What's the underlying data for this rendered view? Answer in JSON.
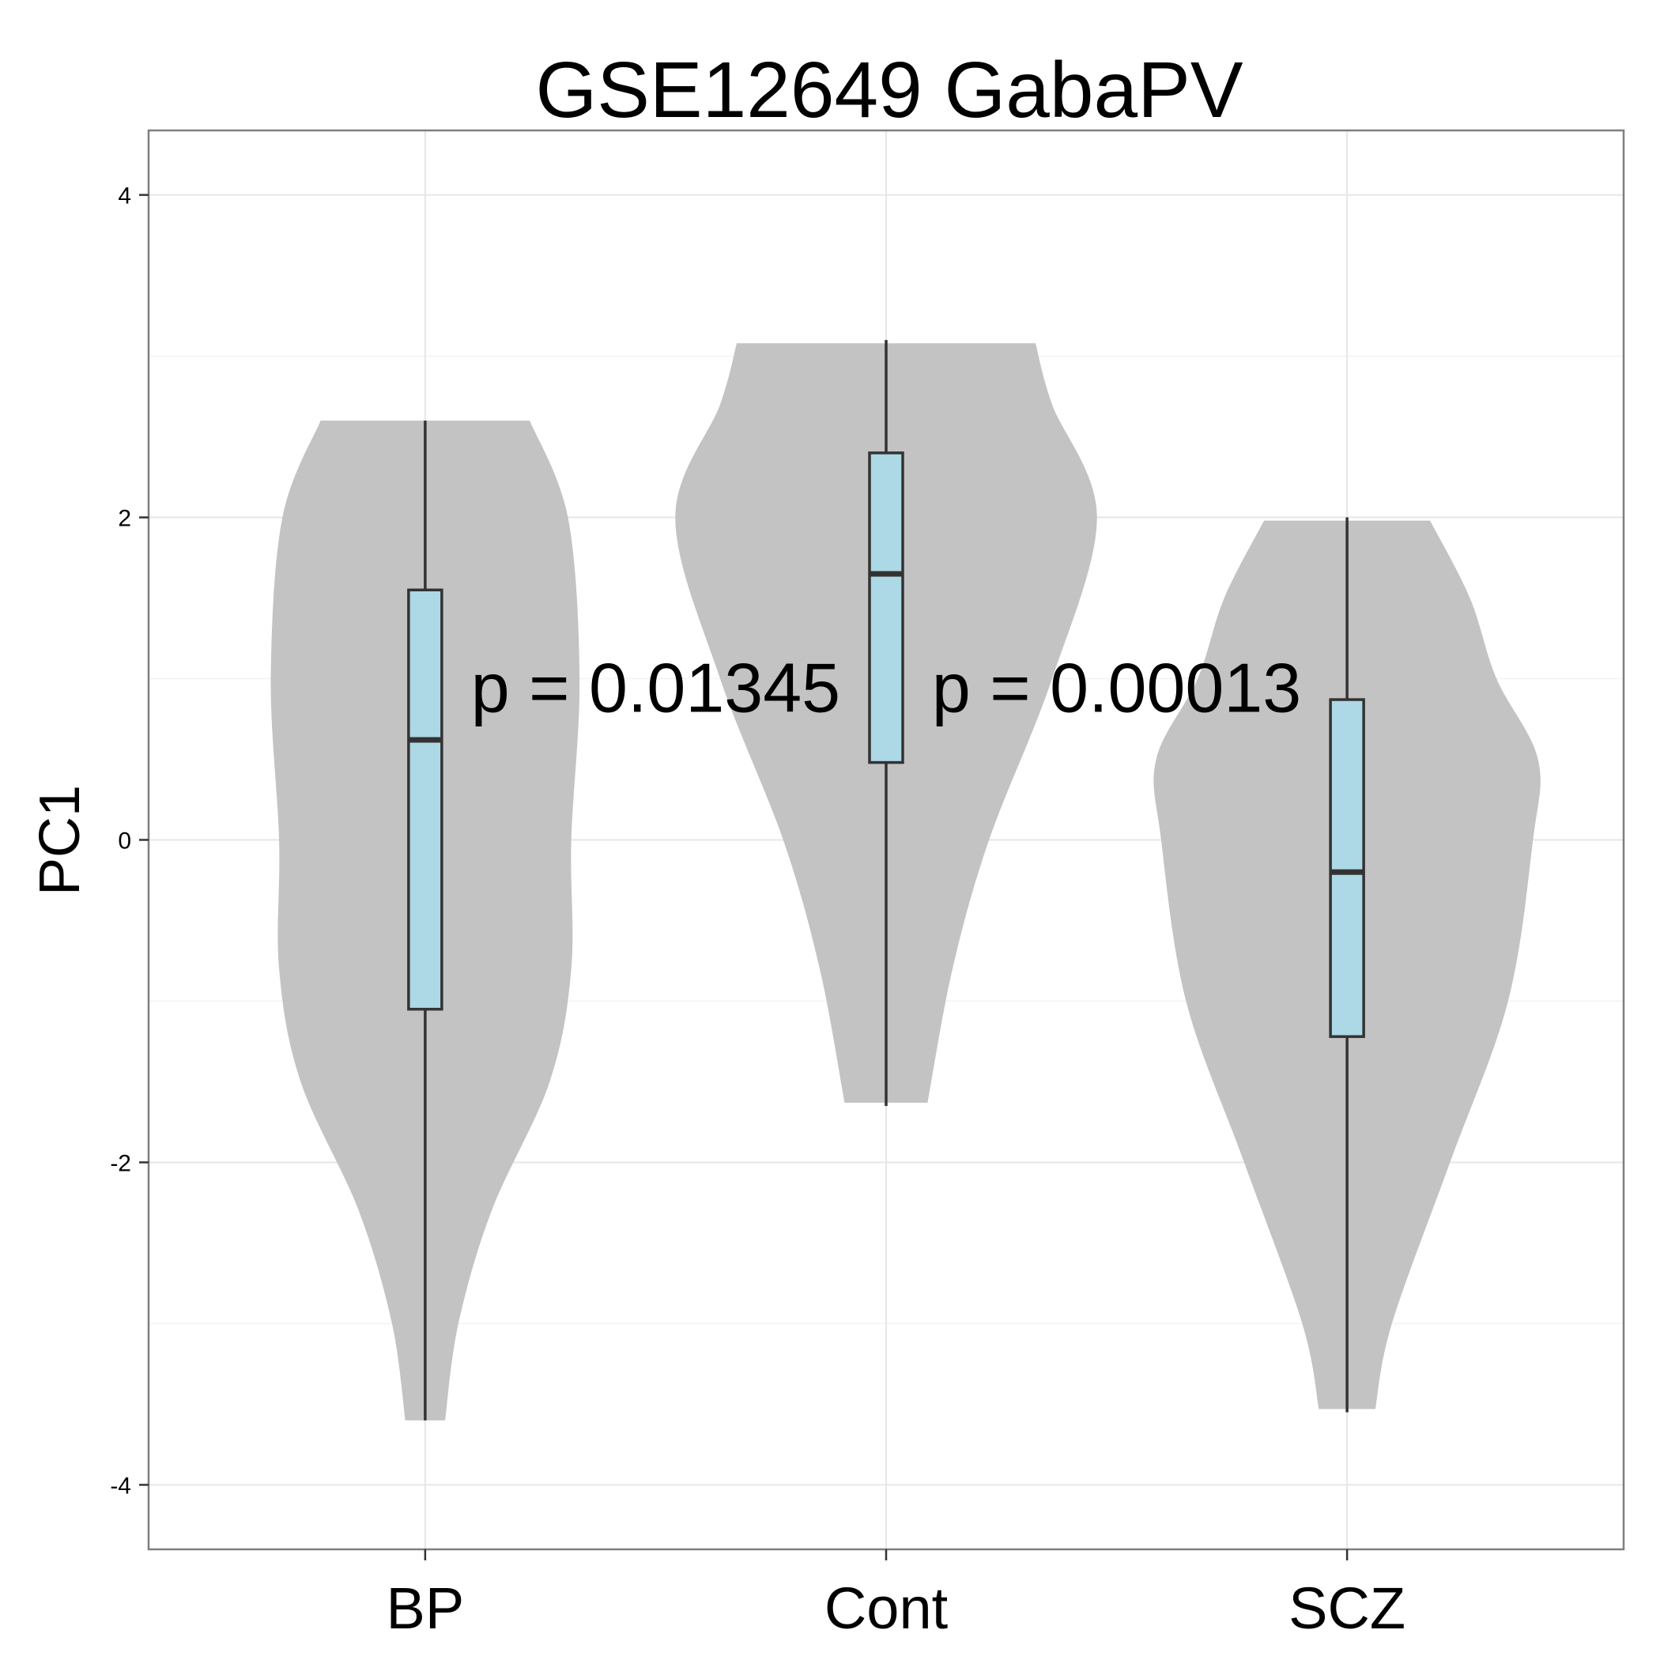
{
  "chart_data": {
    "type": "violin",
    "title": "GSE12649 GabaPV",
    "xlabel": "",
    "ylabel": "PC1",
    "categories": [
      "BP",
      "Cont",
      "SCZ"
    ],
    "ylim": [
      -4.4,
      4.4
    ],
    "y_ticks": [
      -4,
      -2,
      0,
      2,
      4
    ],
    "y_tick_labels": [
      "-4",
      "-2",
      "0",
      "2",
      "4"
    ],
    "grid": true,
    "violin_color": "#c3c3c3",
    "box_color": "#add8e6",
    "groups": [
      {
        "name": "BP",
        "min": -3.6,
        "q1": -1.05,
        "median": 0.62,
        "q3": 1.55,
        "max": 2.6,
        "violin": [
          [
            2.6,
            0.63
          ],
          [
            2.0,
            0.86
          ],
          [
            1.0,
            0.93
          ],
          [
            0.0,
            0.88
          ],
          [
            -0.8,
            0.88
          ],
          [
            -1.5,
            0.75
          ],
          [
            -2.3,
            0.4
          ],
          [
            -3.0,
            0.2
          ],
          [
            -3.6,
            0.12
          ]
        ]
      },
      {
        "name": "Cont",
        "min": -1.65,
        "q1": 0.48,
        "median": 1.65,
        "q3": 2.4,
        "max": 3.1,
        "violin": [
          [
            3.08,
            0.9
          ],
          [
            2.7,
            1.0
          ],
          [
            2.0,
            1.27
          ],
          [
            1.0,
            1.0
          ],
          [
            0.0,
            0.62
          ],
          [
            -0.8,
            0.4
          ],
          [
            -1.63,
            0.25
          ]
        ]
      },
      {
        "name": "SCZ",
        "min": -3.55,
        "q1": -1.22,
        "median": -0.2,
        "q3": 0.87,
        "max": 2.0,
        "violin": [
          [
            1.98,
            0.5
          ],
          [
            1.5,
            0.74
          ],
          [
            1.0,
            0.9
          ],
          [
            0.5,
            1.15
          ],
          [
            0.0,
            1.12
          ],
          [
            -1.0,
            0.97
          ],
          [
            -2.0,
            0.62
          ],
          [
            -3.0,
            0.27
          ],
          [
            -3.53,
            0.17
          ]
        ]
      }
    ],
    "annotations": [
      {
        "text": "p = 0.01345",
        "x": 1.5,
        "y": 0.95
      },
      {
        "text": "p = 0.00013",
        "x": 2.5,
        "y": 0.95
      }
    ]
  }
}
